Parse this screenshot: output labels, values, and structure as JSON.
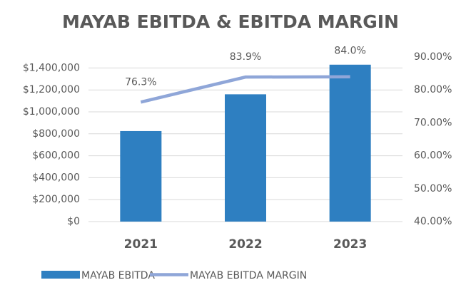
{
  "chart_data": {
    "type": "bar_line",
    "title": "MAYAB EBITDA & EBITDA MARGIN",
    "categories": [
      "2021",
      "2022",
      "2023"
    ],
    "series": [
      {
        "name": "MAYAB EBITDA",
        "type": "bar",
        "color": "#2e7fc1",
        "values": [
          825000,
          1160000,
          1430000
        ]
      },
      {
        "name": "MAYAB EBITDA MARGIN",
        "type": "line",
        "axis": "y2",
        "color": "#8fa6d8",
        "values": [
          76.3,
          83.9,
          84.0
        ],
        "value_labels": [
          "76.3%",
          "83.9%",
          "84.0%"
        ]
      }
    ],
    "ylim": [
      0,
      1500000
    ],
    "yticks": [
      {
        "value": 0,
        "label": "$0"
      },
      {
        "value": 200000,
        "label": "$200,000"
      },
      {
        "value": 400000,
        "label": "$400,000"
      },
      {
        "value": 600000,
        "label": "$600,000"
      },
      {
        "value": 800000,
        "label": "$800,000"
      },
      {
        "value": 1000000,
        "label": "$1,000,000"
      },
      {
        "value": 1200000,
        "label": "$1,200,000"
      },
      {
        "value": 1400000,
        "label": "$1,400,000"
      }
    ],
    "y2lim": [
      40,
      90
    ],
    "y2ticks": [
      {
        "value": 40,
        "label": "40.00%"
      },
      {
        "value": 50,
        "label": "50.00%"
      },
      {
        "value": 60,
        "label": "60.00%"
      },
      {
        "value": 70,
        "label": "70.00%"
      },
      {
        "value": 80,
        "label": "80.00%"
      },
      {
        "value": 90,
        "label": "90.00%"
      }
    ],
    "grid": true,
    "legend": "bottom"
  }
}
